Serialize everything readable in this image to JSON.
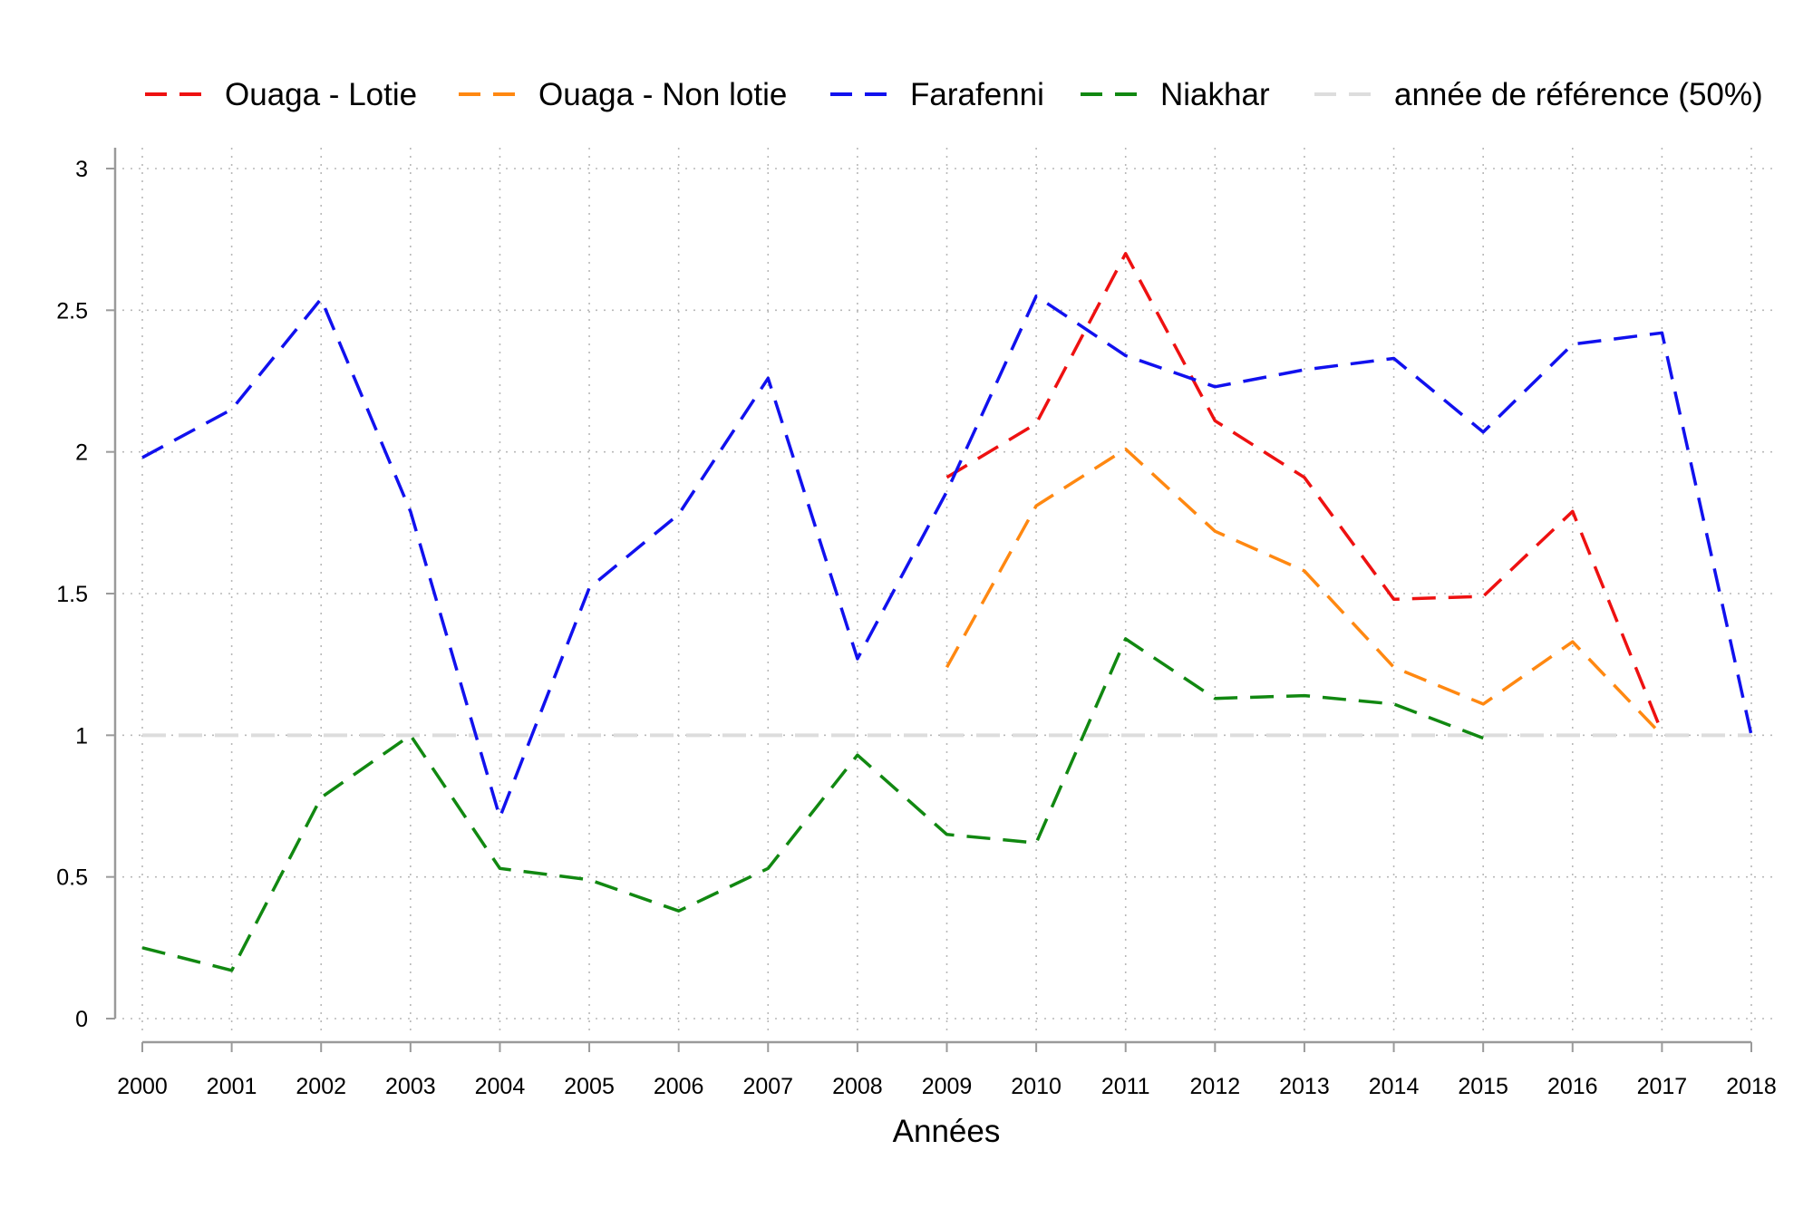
{
  "chart_data": {
    "type": "line",
    "title": "",
    "xlabel": "Années",
    "ylabel": "",
    "xlim": [
      2000,
      2018
    ],
    "ylim": [
      0,
      3
    ],
    "x_ticks": [
      "2000",
      "2001",
      "2002",
      "2003",
      "2004",
      "2005",
      "2006",
      "2007",
      "2008",
      "2009",
      "2010",
      "2011",
      "2012",
      "2013",
      "2014",
      "2015",
      "2016",
      "2017",
      "2018"
    ],
    "y_ticks": [
      "0",
      "0.5",
      "1",
      "1.5",
      "2",
      "2.5",
      "3"
    ],
    "grid": true,
    "grid_style": "dotted",
    "legend_position": "top",
    "series": [
      {
        "name": "Ouaga - Lotie",
        "color": "#ee1111",
        "style": "dashed",
        "x": [
          2009,
          2010,
          2011,
          2012,
          2013,
          2014,
          2015,
          2016,
          2017
        ],
        "y": [
          1.91,
          2.1,
          2.7,
          2.11,
          1.91,
          1.48,
          1.49,
          1.79,
          1.01
        ]
      },
      {
        "name": "Ouaga - Non lotie",
        "color": "#ff8811",
        "style": "dashed",
        "x": [
          2009,
          2010,
          2011,
          2012,
          2013,
          2014,
          2015,
          2016,
          2017
        ],
        "y": [
          1.24,
          1.81,
          2.01,
          1.72,
          1.58,
          1.24,
          1.11,
          1.33,
          1.0
        ]
      },
      {
        "name": "Farafenni",
        "color": "#1111ee",
        "style": "dashed",
        "x": [
          2000,
          2001,
          2002,
          2003,
          2004,
          2005,
          2006,
          2007,
          2008,
          2009,
          2010,
          2011,
          2012,
          2013,
          2014,
          2015,
          2016,
          2017,
          2018
        ],
        "y": [
          1.98,
          2.15,
          2.54,
          1.79,
          0.71,
          1.52,
          1.78,
          2.26,
          1.27,
          1.86,
          2.55,
          2.34,
          2.23,
          2.29,
          2.33,
          2.07,
          2.38,
          2.42,
          1.0
        ]
      },
      {
        "name": "Niakhar",
        "color": "#118811",
        "style": "dashed",
        "x": [
          2000,
          2001,
          2002,
          2003,
          2004,
          2005,
          2006,
          2007,
          2008,
          2009,
          2010,
          2011,
          2012,
          2013,
          2014,
          2015
        ],
        "y": [
          0.25,
          0.17,
          0.78,
          1.0,
          0.53,
          0.49,
          0.38,
          0.53,
          0.93,
          0.65,
          0.62,
          1.34,
          1.13,
          1.14,
          1.11,
          0.99
        ]
      }
    ],
    "reference_line": {
      "name": "année de référence (50%)",
      "color": "#dddddd",
      "style": "dashed",
      "y": 1
    }
  }
}
